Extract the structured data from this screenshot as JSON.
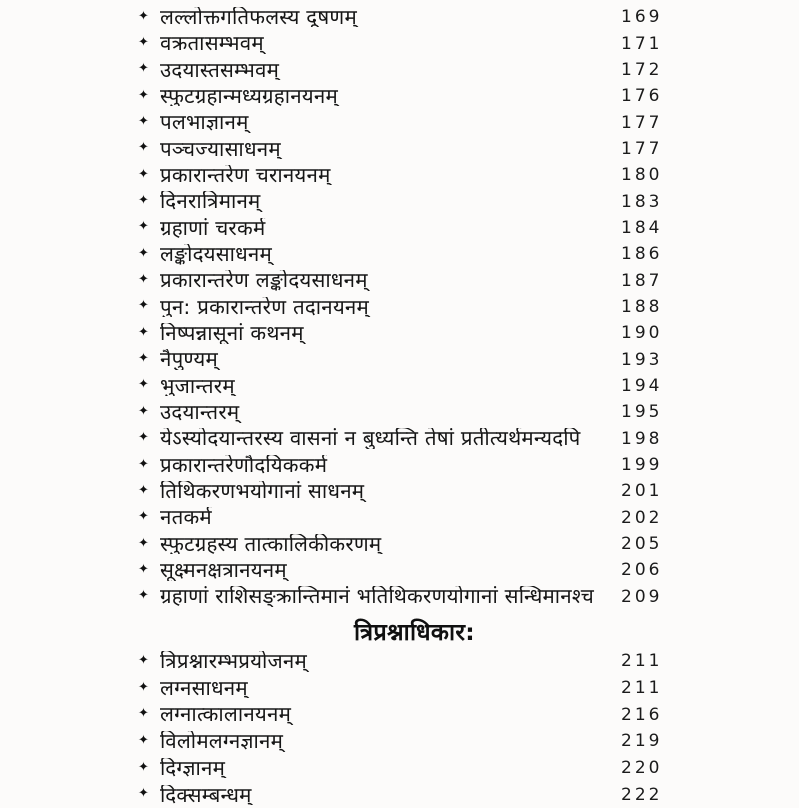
{
  "colors": {
    "paper": "#fcfbfa",
    "ink": "#161616"
  },
  "bullet_icon": "✦",
  "sections": [
    {
      "heading": "",
      "entries": [
        {
          "title": "लल्लोक्तगतिफलस्य दूषणम्",
          "page": "169"
        },
        {
          "title": "वक्रतासम्भवम्",
          "page": "171"
        },
        {
          "title": "उदयास्तसम्भवम्",
          "page": "172"
        },
        {
          "title": "स्फुटग्रहान्मध्यग्रहानयनम्",
          "page": "176"
        },
        {
          "title": "पलभाज्ञानम्",
          "page": "177"
        },
        {
          "title": "पञ्चज्यासाधनम्",
          "page": "177"
        },
        {
          "title": "प्रकारान्तरेण चरानयनम्",
          "page": "180"
        },
        {
          "title": "दिनरात्रिमानम्",
          "page": "183"
        },
        {
          "title": "ग्रहाणां चरकर्म",
          "page": "184"
        },
        {
          "title": "लङ्कोदयसाधनम्",
          "page": "186"
        },
        {
          "title": "प्रकारान्तरेण लङ्कोदयसाधनम्",
          "page": "187"
        },
        {
          "title": "पुन: प्रकारान्तरेण तदानयनम्",
          "page": "188"
        },
        {
          "title": "निष्पन्नासूनां कथनम्",
          "page": "190"
        },
        {
          "title": "नैपुण्यम्",
          "page": "193"
        },
        {
          "title": "भुजान्तरम्",
          "page": "194"
        },
        {
          "title": "उदयान्तरम्",
          "page": "195"
        },
        {
          "title": "येऽस्योदयान्तरस्य वासनां न बुध्यन्ति तेषां प्रतीत्यर्थमन्यदपि",
          "page": "198"
        },
        {
          "title": "प्रकारान्तरेणौदयिककर्म",
          "page": "199"
        },
        {
          "title": "तिथिकरणभयोगानां साधनम्",
          "page": "201"
        },
        {
          "title": "नतकर्म",
          "page": "202"
        },
        {
          "title": "स्फुटग्रहस्य तात्कालिकीकरणम्",
          "page": "205"
        },
        {
          "title": "सूक्ष्मनक्षत्रानयनम्",
          "page": "206"
        },
        {
          "title": "ग्रहाणां राशिसङ्क्रान्तिमानं भतिथिकरणयोगानां सन्धिमानश्च",
          "page": "209"
        }
      ]
    },
    {
      "heading": "त्रिप्रश्नाधिकार:",
      "entries": [
        {
          "title": "त्रिप्रश्नारम्भप्रयोजनम्",
          "page": "211"
        },
        {
          "title": "लग्नसाधनम्",
          "page": "211"
        },
        {
          "title": "लग्नात्कालानयनम्",
          "page": "216"
        },
        {
          "title": "विलोमलग्नज्ञानम्",
          "page": "219"
        },
        {
          "title": "दिग्ज्ञानम्",
          "page": "220"
        },
        {
          "title": "दिक्सम्बन्धम्",
          "page": "222"
        }
      ]
    }
  ]
}
